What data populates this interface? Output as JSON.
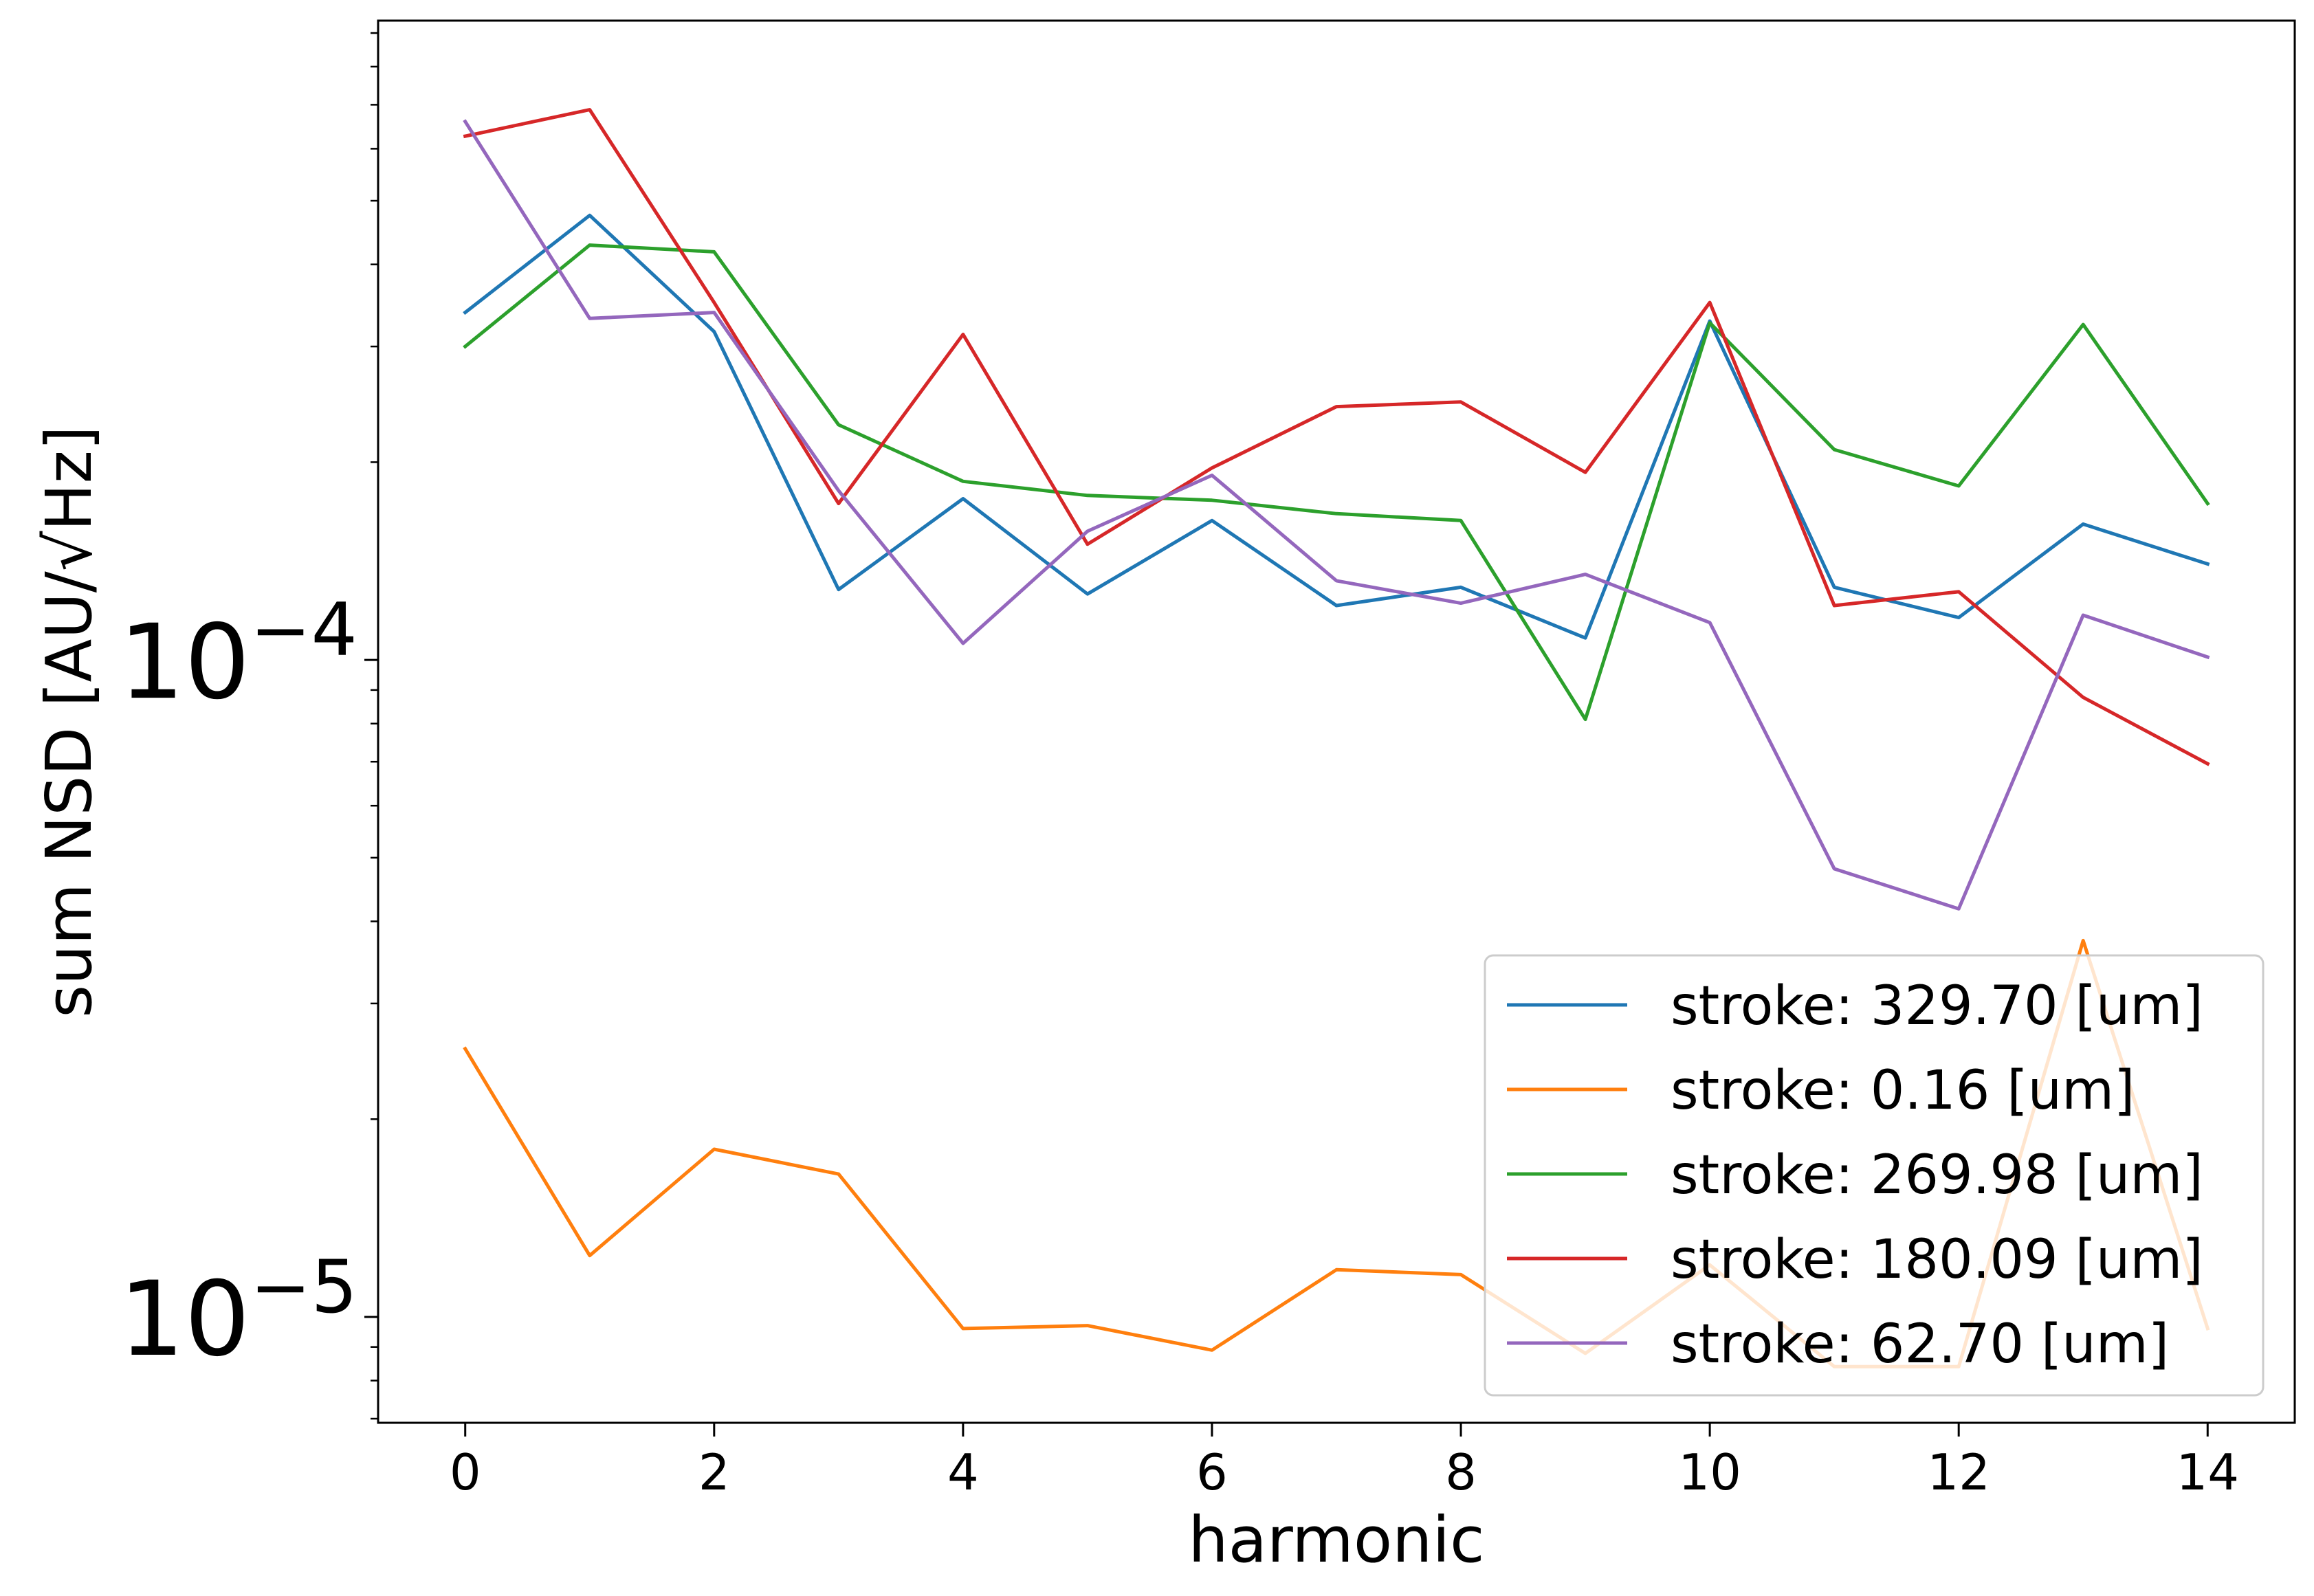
{
  "chart_data": {
    "type": "line",
    "xlabel": "harmonic",
    "ylabel": "sum NSD [AU/√Hz]",
    "y_scale": "log",
    "xlim": [
      -0.7,
      14.7
    ],
    "ylim": [
      6.9e-06,
      0.00094
    ],
    "x_ticks": [
      0,
      2,
      4,
      6,
      8,
      10,
      12,
      14
    ],
    "x_tick_labels": [
      "0",
      "2",
      "4",
      "6",
      "8",
      "10",
      "12",
      "14"
    ],
    "y_major_ticks": [
      {
        "value": 0.0001,
        "base": "10",
        "exp": "−4"
      },
      {
        "value": 1e-05,
        "base": "10",
        "exp": "−5"
      }
    ],
    "y_minor_ticks": [
      7e-06,
      8e-06,
      9e-06,
      2e-05,
      3e-05,
      4e-05,
      5e-05,
      6e-05,
      7e-05,
      8e-05,
      9e-05,
      0.0002,
      0.0003,
      0.0004,
      0.0005,
      0.0006,
      0.0007,
      0.0008,
      0.0009
    ],
    "grid": false,
    "legend_position": "lower-right",
    "x": [
      0,
      1,
      2,
      3,
      4,
      5,
      6,
      7,
      8,
      9,
      10,
      11,
      12,
      13,
      14
    ],
    "series": [
      {
        "name": "stroke: 329.70 [um]",
        "color": "#1f77b4",
        "values": [
          0.000338,
          0.000475,
          0.000316,
          0.000128,
          0.000176,
          0.000126,
          0.000163,
          0.000121,
          0.000129,
          0.000108,
          0.000328,
          0.000129,
          0.000116,
          0.000161,
          0.00014
        ]
      },
      {
        "name": "stroke: 0.16 [um]",
        "color": "#ff7f0e",
        "values": [
          2.56e-05,
          1.24e-05,
          1.8e-05,
          1.65e-05,
          9.6e-06,
          9.7e-06,
          8.9e-06,
          1.18e-05,
          1.16e-05,
          8.8e-06,
          1.2e-05,
          8.4e-06,
          8.4e-06,
          3.74e-05,
          9.6e-06
        ]
      },
      {
        "name": "stroke: 269.98 [um]",
        "color": "#2ca02c",
        "values": [
          0.0003,
          0.000428,
          0.000418,
          0.000228,
          0.000187,
          0.000178,
          0.000175,
          0.000167,
          0.000163,
          8.12e-05,
          0.000326,
          0.000209,
          0.000184,
          0.000324,
          0.000173
        ]
      },
      {
        "name": "stroke: 180.09 [um]",
        "color": "#d62728",
        "values": [
          0.000627,
          0.000688,
          0.00035,
          0.000173,
          0.000313,
          0.00015,
          0.000196,
          0.000243,
          0.000247,
          0.000193,
          0.00035,
          0.000121,
          0.000127,
          8.77e-05,
          6.95e-05
        ]
      },
      {
        "name": "stroke: 62.70 [um]",
        "color": "#9467bd",
        "values": [
          0.00066,
          0.000331,
          0.000338,
          0.000181,
          0.000106,
          0.000157,
          0.000191,
          0.000132,
          0.000122,
          0.000135,
          0.000114,
          4.81e-05,
          4.18e-05,
          0.000117,
          0.000101
        ]
      }
    ]
  }
}
